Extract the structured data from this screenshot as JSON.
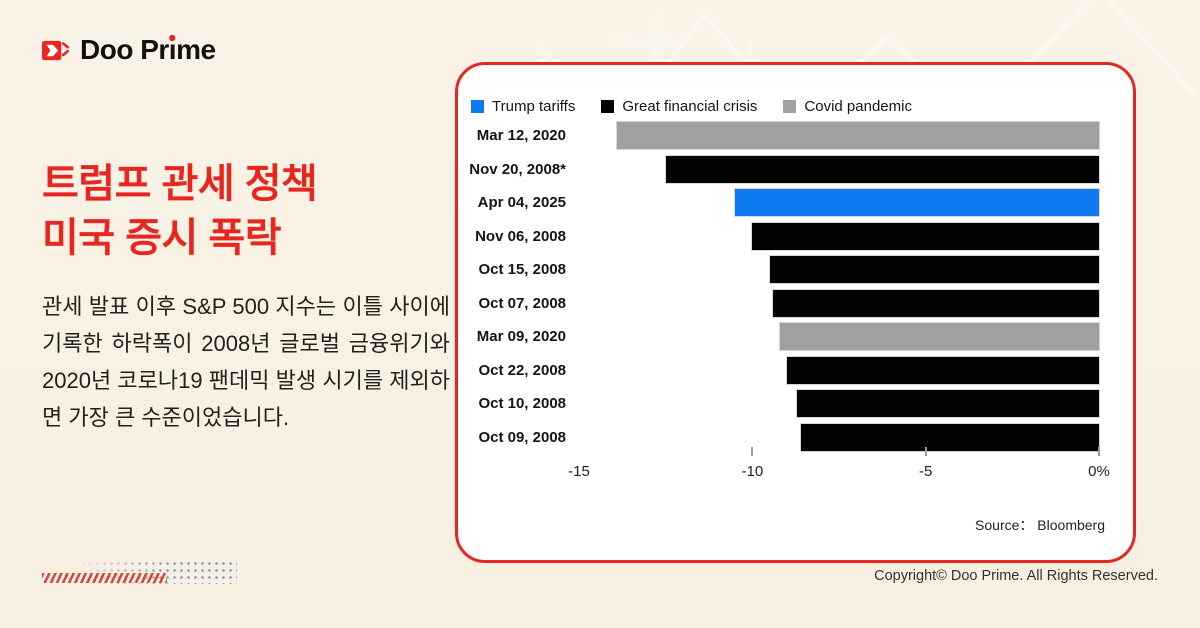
{
  "brand": {
    "logo_part1": "Doo Pr",
    "logo_i": "ı",
    "logo_part2": "me",
    "accent_red": "#e8251e"
  },
  "title": {
    "lines": [
      "트럼프 관세 정책",
      "미국 증시 폭락"
    ]
  },
  "paragraph": {
    "text": "관세 발표 이후 S&P 500 지수는 이틀 사이에 기록한 하락폭이 2008년 글로벌 금융위기와 2020년 코로나19 팬데믹 발생 시기를 제외하면 가장 큰 수준이었습니다."
  },
  "chart_data": {
    "type": "bar",
    "orientation": "horizontal",
    "title": "",
    "xlabel": "",
    "ylabel": "",
    "xlim": [
      -15,
      0
    ],
    "grid": false,
    "legend_position": "top-left",
    "legend": [
      {
        "key": "trump",
        "label": "Trump tariffs",
        "color": "#0f79f2"
      },
      {
        "key": "gfc",
        "label": "Great financial crisis",
        "color": "#030303"
      },
      {
        "key": "covid",
        "label": "Covid pandemic",
        "color": "#a0a0a0"
      }
    ],
    "colors": {
      "trump": "#0f79f2",
      "gfc": "#030303",
      "covid": "#a0a0a0"
    },
    "categories": [
      "Mar 12, 2020",
      "Nov 20, 2008*",
      "Apr 04, 2025",
      "Nov 06, 2008",
      "Oct 15, 2008",
      "Oct 07, 2008",
      "Mar 09, 2020",
      "Oct 22, 2008",
      "Oct 10, 2008",
      "Oct 09, 2008"
    ],
    "values": [
      -13.9,
      -12.5,
      -10.5,
      -10.0,
      -9.5,
      -9.4,
      -9.2,
      -9.0,
      -8.7,
      -8.6
    ],
    "series_key": [
      "covid",
      "gfc",
      "trump",
      "gfc",
      "gfc",
      "gfc",
      "covid",
      "gfc",
      "gfc",
      "gfc"
    ],
    "xticks": [
      {
        "value": -15,
        "label": "-15",
        "tick": false
      },
      {
        "value": -10,
        "label": "-10",
        "tick": true
      },
      {
        "value": -5,
        "label": "-5",
        "tick": true
      },
      {
        "value": 0,
        "label": "0%",
        "tick": true
      }
    ],
    "source": "Source：  Bloomberg"
  },
  "footer": {
    "copyright": "Copyright© Doo Prime. All Rights Reserved."
  }
}
